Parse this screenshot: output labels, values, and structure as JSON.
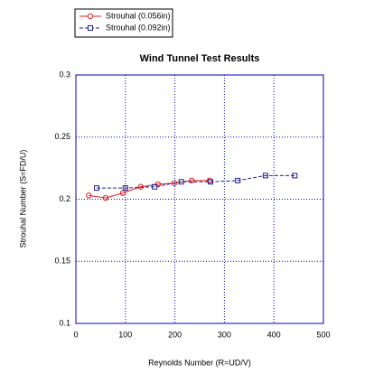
{
  "chart_data": {
    "type": "line",
    "title": "Wind Tunnel Test Results",
    "x_label": "Reynolds Number (R=UD/V)",
    "y_label": "Strouhal Number (S=FD/U)",
    "xlim": [
      0,
      500
    ],
    "xticks": [
      0,
      100,
      200,
      300,
      400,
      500
    ],
    "ylim": [
      0.1,
      0.3
    ],
    "yticks": [
      0.1,
      0.15,
      0.2,
      0.25,
      0.3
    ],
    "grid": true,
    "legend": "top-left",
    "series": [
      {
        "name": "Strouhal (0.056in)",
        "color": "#e02020",
        "marker": "circle",
        "x": [
          26,
          60,
          95,
          131,
          166,
          199,
          234,
          270
        ],
        "values": [
          0.203,
          0.201,
          0.205,
          0.21,
          0.212,
          0.213,
          0.215,
          0.215
        ]
      },
      {
        "name": "Strouhal (0.092in)",
        "color": "#202090",
        "marker": "square",
        "x": [
          42,
          100,
          159,
          213,
          272,
          327,
          383,
          442
        ],
        "values": [
          0.209,
          0.209,
          0.21,
          0.214,
          0.214,
          0.215,
          0.219,
          0.219
        ]
      }
    ]
  }
}
